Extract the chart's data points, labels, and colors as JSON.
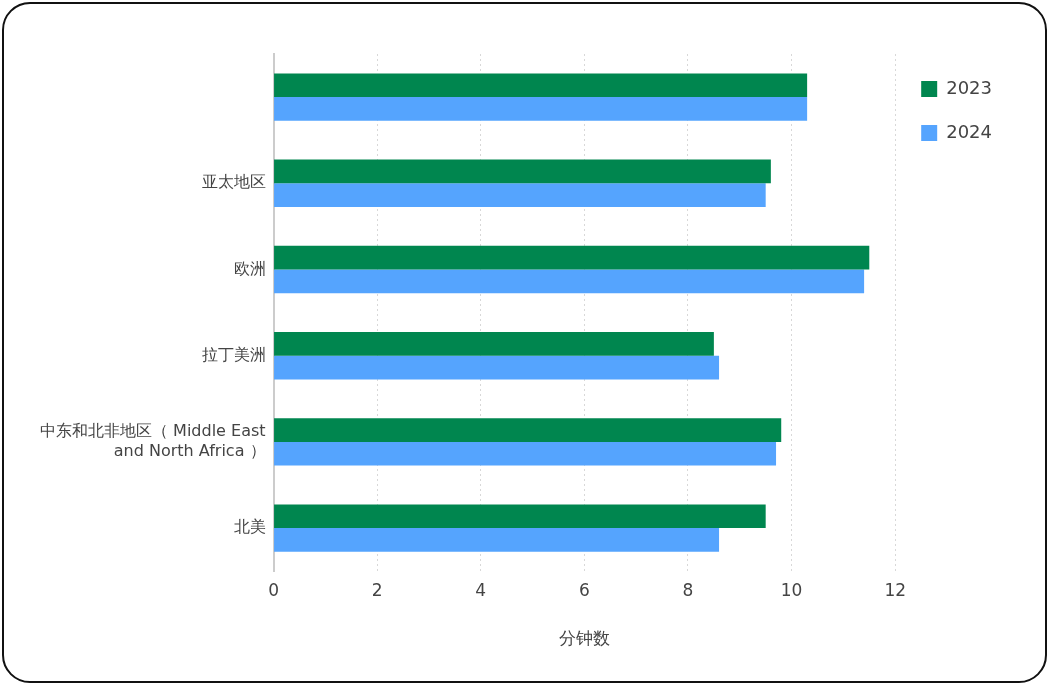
{
  "chart_data": {
    "type": "bar",
    "orientation": "horizontal",
    "xlabel": "分钟数",
    "categories": [
      null,
      "亚太地区",
      "欧洲",
      "拉丁美洲",
      "中东和北非地区（ Middle East and North Africa ）",
      "北美"
    ],
    "series": [
      {
        "name": "2023",
        "color": "#00864f",
        "values": [
          10.3,
          9.6,
          11.5,
          8.5,
          9.8,
          9.5
        ]
      },
      {
        "name": "2024",
        "color": "#55a4fe",
        "values": [
          10.3,
          9.5,
          11.4,
          8.6,
          9.7,
          8.6
        ]
      }
    ],
    "xlim": [
      0,
      12
    ],
    "xticks": [
      0,
      2,
      4,
      6,
      8,
      10,
      12
    ],
    "grid": "x",
    "legend": "top right"
  }
}
